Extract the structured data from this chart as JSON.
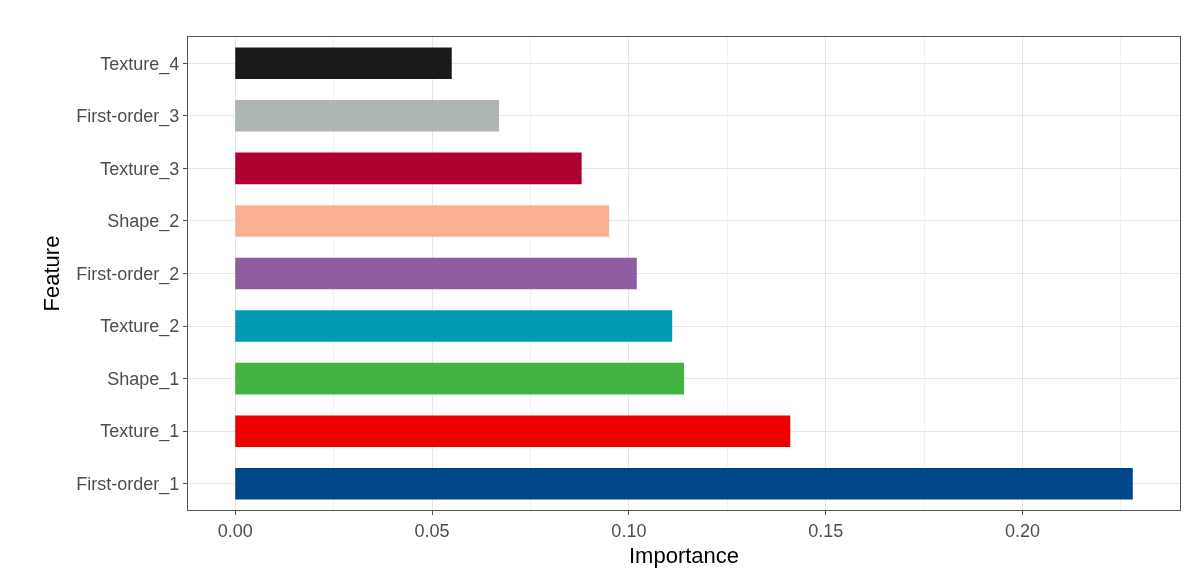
{
  "chart_data": {
    "type": "bar",
    "orientation": "horizontal",
    "xlabel": "Importance",
    "ylabel": "Feature",
    "categories": [
      "Texture_4",
      "First-order_3",
      "Texture_3",
      "Shape_2",
      "First-order_2",
      "Texture_2",
      "Shape_1",
      "Texture_1",
      "First-order_1"
    ],
    "values": [
      0.055,
      0.067,
      0.088,
      0.095,
      0.102,
      0.111,
      0.114,
      0.141,
      0.228
    ],
    "colors": [
      "#1a1a1a",
      "#adb5b5",
      "#b0002f",
      "#fcb093",
      "#8f5ca0",
      "#0099b4",
      "#42b540",
      "#ed0000",
      "#00468b"
    ],
    "xlim": [
      -0.012,
      0.24
    ],
    "xticks": [
      {
        "value": 0,
        "label": "0.00"
      },
      0.05,
      {
        "value": 0.1,
        "label": "0.10"
      },
      0.15,
      {
        "value": 0.2,
        "label": "0.20"
      }
    ],
    "grid": true
  }
}
